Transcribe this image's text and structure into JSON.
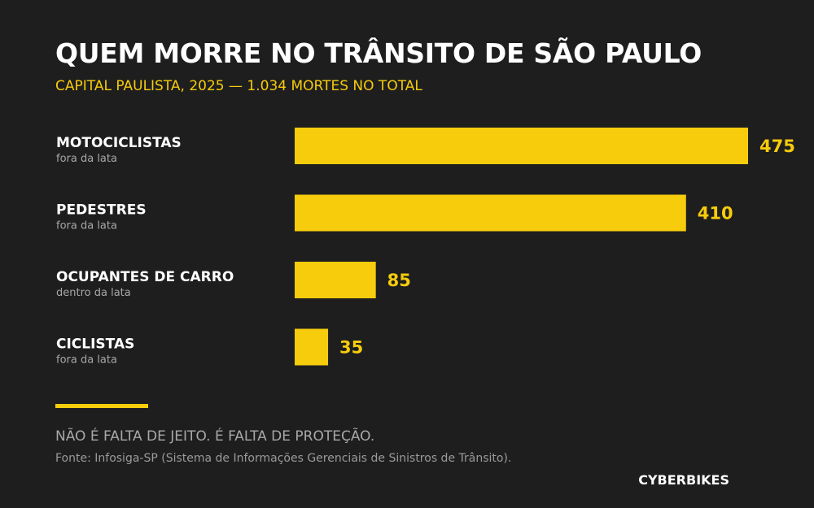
{
  "colors": {
    "background": "#1e1e1e",
    "accent": "#f6cc0c",
    "text": "#ffffff",
    "muted": "#a8a8a8"
  },
  "chart_data": {
    "type": "bar",
    "orientation": "horizontal",
    "title": "QUEM MORRE NO TRÂNSITO DE SÃO PAULO",
    "subtitle": "CAPITAL PAULISTA, 2025 — 1.034 MORTES NO TOTAL",
    "categories": [
      "MOTOCICLISTAS",
      "PEDESTRES",
      "OCUPANTES DE CARRO",
      "CICLISTAS"
    ],
    "category_notes": [
      "fora da lata",
      "fora da lata",
      "dentro da lata",
      "fora da lata"
    ],
    "values": [
      475,
      410,
      85,
      35
    ],
    "value_labels": [
      "475",
      "410",
      "85",
      "35"
    ],
    "xlim": [
      0,
      475
    ],
    "grid": false,
    "legend": false
  },
  "footer": {
    "tagline": "NÃO É FALTA DE JEITO. É FALTA DE PROTEÇÃO.",
    "source": "Fonte: Infosiga-SP (Sistema de Informações Gerenciais de Sinistros de Trânsito).",
    "brand": "CYBERBIKES"
  }
}
